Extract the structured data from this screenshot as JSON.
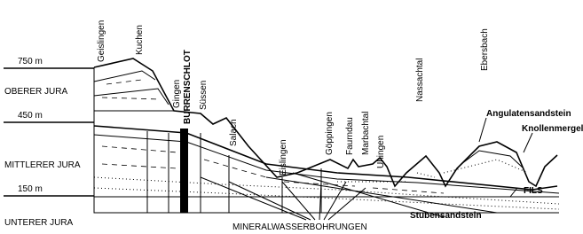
{
  "elevations": [
    "750 m",
    "450 m",
    "150 m"
  ],
  "strata": [
    "OBERER JURA",
    "MITTLERER JURA",
    "UNTERER JURA"
  ],
  "places": [
    "Geislingen",
    "Kuchen",
    "Gingen",
    "BURRENSCHLOT",
    "Süssen",
    "Salach",
    "Eislingen",
    "Göppingen",
    "Faurndau",
    "Marbachtal",
    "Uhingen",
    "Nassachtal",
    "Ebersbach"
  ],
  "labels": {
    "angulatensandstein": "Angulatensandstein",
    "knollenmergel": "Knollenmergel",
    "fils": "FILS",
    "stubensandstein": "Stubensandstein",
    "mineralwasser": "MINERALWASSERBOHRUNGEN"
  }
}
